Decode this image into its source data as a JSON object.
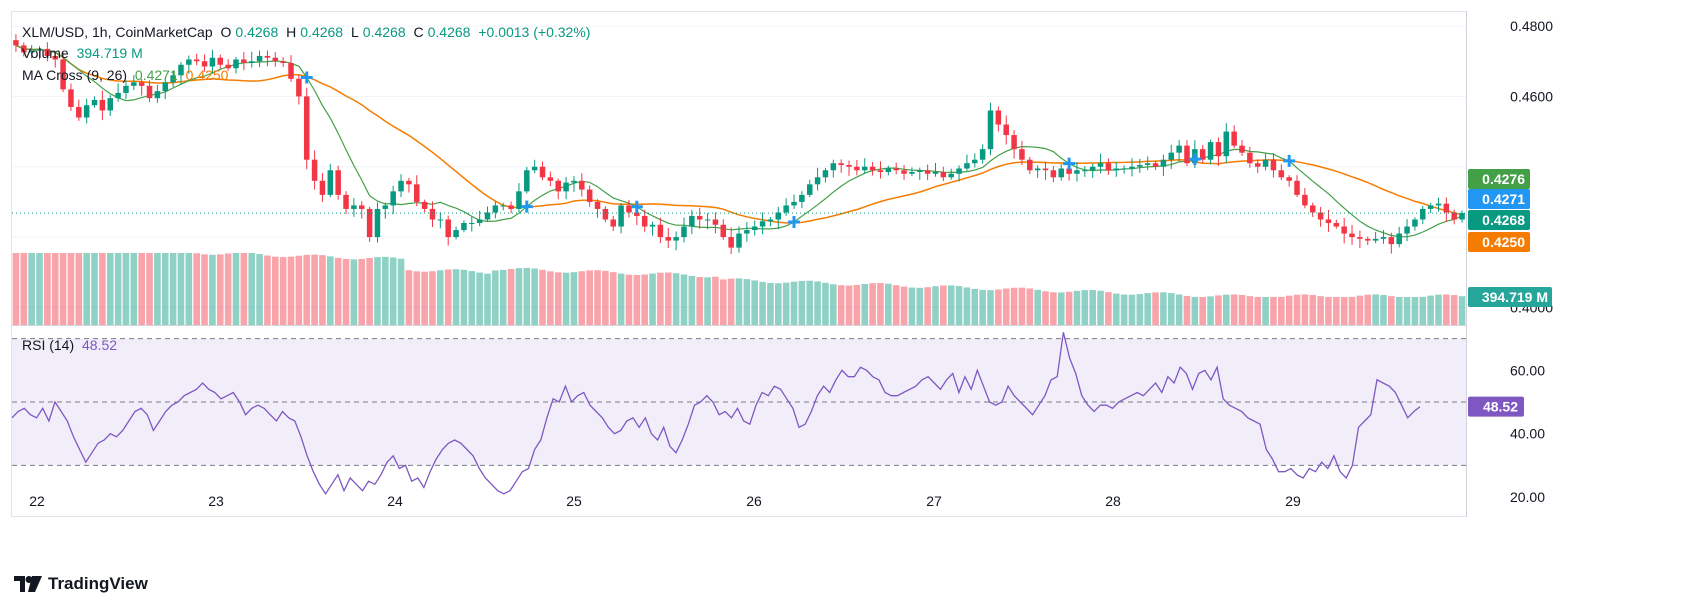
{
  "header": {
    "symbol": "XLM/USD, 1h, CoinMarketCap",
    "o_label": "O",
    "o_value": "0.4268",
    "h_label": "H",
    "h_value": "0.4268",
    "l_label": "L",
    "l_value": "0.4268",
    "c_label": "C",
    "c_value": "0.4268",
    "change": "+0.0013 (+0.32%)"
  },
  "volume_legend": {
    "label": "Volume",
    "value": "394.719 M"
  },
  "ma_legend": {
    "label": "MA Cross (9, 26)",
    "v1": "0.4271",
    "v2": "0.4250"
  },
  "rsi_legend": {
    "label": "RSI (14)",
    "value": "48.52"
  },
  "brand": {
    "name": "TradingView"
  },
  "colors": {
    "up": "#089981",
    "down": "#f23645",
    "ma_fast": "#43a047",
    "ma_slow": "#f57c00",
    "cross": "#2196f3",
    "rsi": "#7e57c2",
    "last": "#089981"
  },
  "chart_data": [
    {
      "type": "candlestick",
      "title": "XLM/USD, 1h, CoinMarketCap",
      "ylim": [
        0.395,
        0.484
      ],
      "y_ticks": [
        "0.4800",
        "0.4600",
        "0.4000"
      ],
      "x_tick_labels": [
        "22",
        "23",
        "24",
        "25",
        "26",
        "27",
        "28",
        "29"
      ],
      "price_labels": [
        {
          "name": "ma-fast",
          "value": 0.4276,
          "text": "0.4276",
          "color": "#43a047"
        },
        {
          "name": "ma-cross",
          "value": 0.4271,
          "text": "0.4271",
          "color": "#2196f3"
        },
        {
          "name": "last-price",
          "value": 0.4268,
          "text": "0.4268",
          "color": "#089981"
        },
        {
          "name": "ma-slow",
          "value": 0.425,
          "text": "0.4250",
          "color": "#f57c00"
        }
      ],
      "volume_label": "394.719 M",
      "close": [
        0.4745,
        0.4725,
        0.473,
        0.4735,
        0.4715,
        0.4705,
        0.462,
        0.457,
        0.454,
        0.4575,
        0.459,
        0.456,
        0.4595,
        0.461,
        0.463,
        0.464,
        0.463,
        0.4595,
        0.4615,
        0.464,
        0.466,
        0.469,
        0.4705,
        0.47,
        0.4685,
        0.471,
        0.469,
        0.468,
        0.4705,
        0.4695,
        0.47,
        0.4715,
        0.471,
        0.47,
        0.4695,
        0.465,
        0.46,
        0.442,
        0.436,
        0.432,
        0.439,
        0.432,
        0.428,
        0.429,
        0.428,
        0.42,
        0.428,
        0.429,
        0.433,
        0.436,
        0.435,
        0.43,
        0.428,
        0.425,
        0.425,
        0.42,
        0.422,
        0.424,
        0.424,
        0.425,
        0.427,
        0.429,
        0.429,
        0.428,
        0.433,
        0.439,
        0.44,
        0.437,
        0.436,
        0.433,
        0.4355,
        0.436,
        0.4335,
        0.43,
        0.428,
        0.425,
        0.423,
        0.429,
        0.427,
        0.426,
        0.423,
        0.4235,
        0.42,
        0.419,
        0.42,
        0.423,
        0.426,
        0.425,
        0.425,
        0.4235,
        0.42,
        0.417,
        0.421,
        0.422,
        0.423,
        0.4245,
        0.425,
        0.427,
        0.429,
        0.43,
        0.432,
        0.435,
        0.437,
        0.439,
        0.441,
        0.4405,
        0.44,
        0.439,
        0.44,
        0.439,
        0.4385,
        0.4395,
        0.439,
        0.438,
        0.4385,
        0.439,
        0.438,
        0.4385,
        0.437,
        0.438,
        0.4395,
        0.441,
        0.442,
        0.445,
        0.456,
        0.452,
        0.449,
        0.445,
        0.442,
        0.439,
        0.4395,
        0.439,
        0.437,
        0.4395,
        0.438,
        0.439,
        0.439,
        0.44,
        0.441,
        0.439,
        0.4395,
        0.4395,
        0.44,
        0.4405,
        0.441,
        0.44,
        0.442,
        0.444,
        0.446,
        0.441,
        0.445,
        0.442,
        0.447,
        0.443,
        0.45,
        0.446,
        0.444,
        0.441,
        0.44,
        0.442,
        0.439,
        0.437,
        0.436,
        0.432,
        0.429,
        0.427,
        0.425,
        0.424,
        0.423,
        0.421,
        0.42,
        0.4195,
        0.419,
        0.4195,
        0.42,
        0.418,
        0.421,
        0.423,
        0.425,
        0.428,
        0.429,
        0.4295,
        0.427,
        0.425,
        0.4268
      ],
      "rsi": {
        "name": "RSI (14)",
        "ylim": [
          14,
          74
        ],
        "levels": [
          70,
          50,
          30
        ],
        "y_ticks": [
          "60.00",
          "40.00",
          "20.00"
        ],
        "last_value": "48.52",
        "values": [
          45,
          47,
          48,
          46,
          45,
          48,
          44,
          50,
          47,
          44,
          39,
          35,
          31,
          34,
          37,
          38,
          40,
          39,
          41,
          44,
          47,
          48,
          46,
          41,
          44,
          47,
          49,
          50,
          52,
          53,
          54,
          56,
          54,
          53,
          51,
          52,
          53,
          50,
          46,
          48,
          49,
          48,
          46,
          44,
          47,
          45,
          44,
          39,
          33,
          28,
          24,
          21,
          24,
          27,
          22,
          26,
          24,
          22,
          25,
          24,
          27,
          31,
          33,
          29,
          30,
          25,
          26,
          23,
          28,
          32,
          35,
          37,
          38,
          37,
          35,
          33,
          29,
          26,
          24,
          22,
          21,
          22,
          25,
          28,
          29,
          35,
          38,
          45,
          51,
          50,
          55,
          50,
          52,
          53,
          49,
          47,
          45,
          42,
          40,
          41,
          44,
          45,
          42,
          45,
          40,
          38,
          42,
          36,
          34,
          38,
          43,
          49,
          50,
          52,
          50,
          46,
          47,
          45,
          48,
          44,
          43,
          49,
          53,
          52,
          55,
          54,
          51,
          48,
          42,
          43,
          47,
          52,
          55,
          53,
          57,
          60,
          58,
          58,
          61,
          60,
          58,
          57,
          53,
          52,
          52,
          53,
          54,
          55,
          57,
          58,
          56,
          54,
          57,
          59,
          53,
          58,
          54,
          60,
          55,
          50,
          49,
          50,
          55,
          52,
          50,
          48,
          46,
          49,
          52,
          57,
          58,
          72,
          64,
          59,
          52,
          49,
          47,
          49,
          49,
          48,
          50,
          51,
          52,
          53,
          52,
          54,
          56,
          53,
          58,
          56,
          61,
          59,
          54,
          59,
          60,
          57,
          61,
          51,
          49,
          48,
          47,
          45,
          44,
          43,
          35,
          32,
          28,
          28,
          29,
          27,
          26,
          29,
          28,
          31,
          29,
          33,
          28,
          26,
          30,
          42,
          44,
          46,
          57,
          56,
          55,
          53,
          49,
          45,
          47,
          48.52
        ]
      }
    }
  ]
}
